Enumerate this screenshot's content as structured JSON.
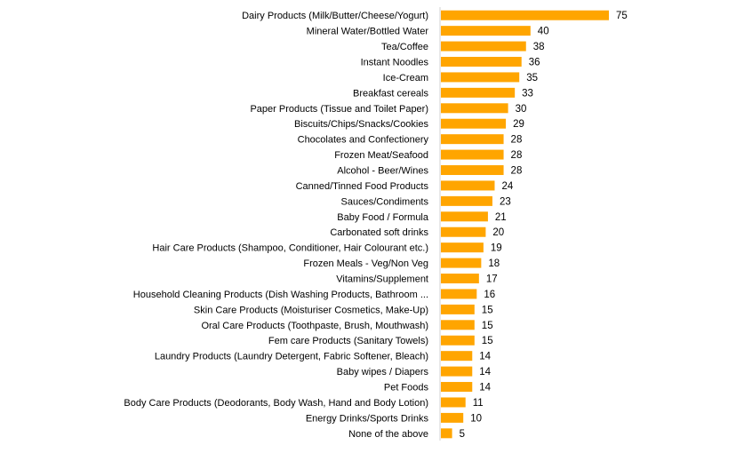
{
  "chart_data": {
    "type": "bar",
    "orientation": "horizontal",
    "title": "",
    "xlabel": "",
    "ylabel": "",
    "xlim": [
      0,
      80
    ],
    "grid": false,
    "legend": "none",
    "bar_color": "#FFA500",
    "categories": [
      "Dairy Products (Milk/Butter/Cheese/Yogurt)",
      "Mineral Water/Bottled Water",
      "Tea/Coffee",
      "Instant Noodles",
      "Ice-Cream",
      "Breakfast cereals",
      "Paper Products (Tissue and Toilet Paper)",
      "Biscuits/Chips/Snacks/Cookies",
      "Chocolates and Confectionery",
      "Frozen Meat/Seafood",
      "Alcohol - Beer/Wines",
      "Canned/Tinned Food Products",
      "Sauces/Condiments",
      "Baby Food / Formula",
      "Carbonated soft drinks",
      "Hair Care Products (Shampoo, Conditioner, Hair Colourant etc.)",
      "Frozen Meals - Veg/Non Veg",
      "Vitamins/Supplement",
      "Household Cleaning Products (Dish Washing Products, Bathroom ...",
      "Skin Care Products (Moisturiser Cosmetics, Make-Up)",
      "Oral Care Products (Toothpaste, Brush, Mouthwash)",
      "Fem care Products (Sanitary Towels)",
      "Laundry Products (Laundry Detergent, Fabric Softener, Bleach)",
      "Baby wipes / Diapers",
      "Pet Foods",
      "Body Care Products (Deodorants, Body Wash, Hand and Body Lotion)",
      "Energy Drinks/Sports Drinks",
      "None of the above"
    ],
    "values": [
      75,
      40,
      38,
      36,
      35,
      33,
      30,
      29,
      28,
      28,
      28,
      24,
      23,
      21,
      20,
      19,
      18,
      17,
      16,
      15,
      15,
      15,
      14,
      14,
      14,
      11,
      10,
      5
    ]
  }
}
